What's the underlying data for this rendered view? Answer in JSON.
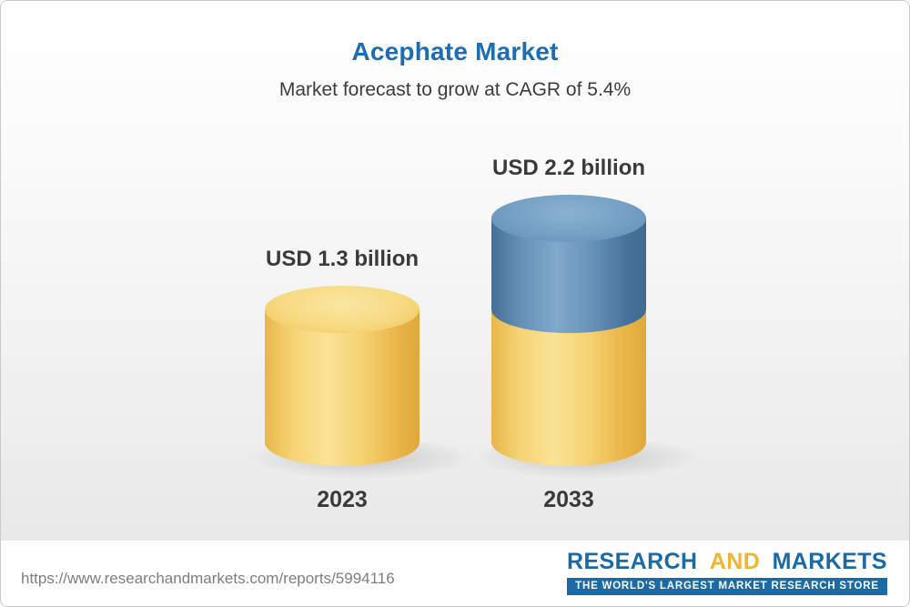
{
  "header": {
    "title": "Acephate Market",
    "subtitle": "Market forecast to grow at CAGR of 5.4%"
  },
  "chart_data": {
    "type": "bar",
    "variant": "3d-cylinder",
    "title": "Acephate Market",
    "subtitle": "Market forecast to grow at CAGR of 5.4%",
    "cagr_pct": 5.4,
    "unit": "USD billion",
    "categories": [
      "2023",
      "2033"
    ],
    "values": [
      1.3,
      2.2
    ],
    "value_labels": [
      "USD 1.3 billion",
      "USD 2.2 billion"
    ],
    "colors": {
      "base_segment": "#F3CD67",
      "growth_segment": "#6792B8",
      "title_blue": "#1B6DB4"
    },
    "notes": "2033 cylinder shows yellow base equal to 2023 value (1.3) with blue growth segment (0.9) stacked on top",
    "legend_position": "none",
    "grid": false
  },
  "footer": {
    "url": "https://www.researchandmarkets.com/reports/5994116",
    "logo": {
      "part1": "RESEARCH",
      "part2": "AND",
      "part3": "MARKETS",
      "tagline": "THE WORLD'S LARGEST MARKET RESEARCH STORE"
    }
  }
}
